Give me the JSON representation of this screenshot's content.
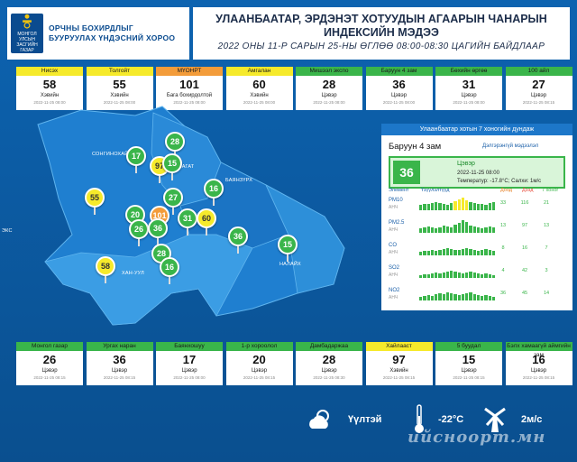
{
  "header": {
    "org_line1": "МОНГОЛ УЛСЫН",
    "org_line2": "ЗАСГИЙН ГАЗАР",
    "agency_line1": "ОРЧНЫ БОХИРДЛЫГ",
    "agency_line2": "БУУРУУЛАХ ҮНДЭСНИЙ ХОРОО",
    "title_line1": "УЛААНБААТАР, ЭРДЭНЭТ ХОТУУДЫН АГААРЫН ЧАНАРЫН",
    "title_line2": "ИНДЕКСИЙН МЭДЭЭ",
    "subtitle": "2022 ОНЫ 11-Р САРЫН 25-НЫ ӨГЛӨӨ 08:00-08:30 ЦАГИЙН БАЙДЛААР"
  },
  "top_cards": [
    {
      "name": "Нисэх",
      "value": "58",
      "level": "Хэвийн",
      "time": "2022-11-25 08:00",
      "color": "#f6ea2b"
    },
    {
      "name": "Толгойт",
      "value": "55",
      "level": "Хэвийн",
      "time": "2022-11-25 08:00",
      "color": "#f6ea2b"
    },
    {
      "name": "МҮОНРТ",
      "value": "101",
      "level": "Бага бохирдолтой",
      "time": "2022-11-25 08:00",
      "color": "#f39c3a"
    },
    {
      "name": "Амгалан",
      "value": "60",
      "level": "Хэвийн",
      "time": "2022-11-25 08:00",
      "color": "#f6ea2b"
    },
    {
      "name": "Мишээл экспо",
      "value": "28",
      "level": "Цэвэр",
      "time": "2022-11-25 08:00",
      "color": "#3ab54a"
    },
    {
      "name": "Баруун 4 зам",
      "value": "36",
      "level": "Цэвэр",
      "time": "2022-11-25 08:00",
      "color": "#3ab54a"
    },
    {
      "name": "Бөхийн өргөө",
      "value": "31",
      "level": "Цэвэр",
      "time": "2022-11-25 08:00",
      "color": "#3ab54a"
    },
    {
      "name": "100 айл",
      "value": "27",
      "level": "Цэвэр",
      "time": "2022-11-25 08:15",
      "color": "#3ab54a"
    }
  ],
  "bottom_cards": [
    {
      "name": "Монгол газар",
      "value": "26",
      "level": "Цэвэр",
      "time": "2022-11-25 08:15",
      "color": "#3ab54a"
    },
    {
      "name": "Ургах наран",
      "value": "36",
      "level": "Цэвэр",
      "time": "2022-11-25 08:15",
      "color": "#3ab54a"
    },
    {
      "name": "Баянхошуу",
      "value": "17",
      "level": "Цэвэр",
      "time": "2022-11-25 08:00",
      "color": "#3ab54a"
    },
    {
      "name": "1-р хороолол",
      "value": "20",
      "level": "Цэвэр",
      "time": "2022-11-25 08:15",
      "color": "#3ab54a"
    },
    {
      "name": "Дамбадаржаа",
      "value": "28",
      "level": "Цэвэр",
      "time": "2022-11-25 08:30",
      "color": "#3ab54a"
    },
    {
      "name": "Хайлааст",
      "value": "97",
      "level": "Хэвийн",
      "time": "2022-11-25 08:15",
      "color": "#f6ea2b"
    },
    {
      "name": "5 буудал",
      "value": "15",
      "level": "Цэвэр",
      "time": "2022-11-25 08:15",
      "color": "#3ab54a"
    },
    {
      "name": "Бэлх хамаагүй аймгийн зам",
      "value": "16",
      "level": "Цэвэр",
      "time": "2022-11-25 08:15",
      "color": "#3ab54a"
    }
  ],
  "map": {
    "districts": [
      "СОНГИНОХАЙРХАН",
      "БАЯНЗҮРХ",
      "НАЛАЙХ",
      "ХАН-УУЛ",
      "БАГАТ"
    ],
    "side_label": "ЭКС",
    "pins": [
      {
        "value": "28",
        "color": "#3ab54a"
      },
      {
        "value": "17",
        "color": "#3ab54a"
      },
      {
        "value": "97",
        "color": "#f6ea2b"
      },
      {
        "value": "15",
        "color": "#3ab54a"
      },
      {
        "value": "55",
        "color": "#f6ea2b"
      },
      {
        "value": "27",
        "color": "#3ab54a"
      },
      {
        "value": "16",
        "color": "#3ab54a"
      },
      {
        "value": "20",
        "color": "#3ab54a"
      },
      {
        "value": "101",
        "color": "#f39c3a"
      },
      {
        "value": "26",
        "color": "#3ab54a"
      },
      {
        "value": "36",
        "color": "#3ab54a"
      },
      {
        "value": "31",
        "color": "#3ab54a"
      },
      {
        "value": "60",
        "color": "#f6ea2b"
      },
      {
        "value": "36",
        "color": "#3ab54a"
      },
      {
        "value": "15",
        "color": "#3ab54a"
      },
      {
        "value": "28",
        "color": "#3ab54a"
      },
      {
        "value": "16",
        "color": "#3ab54a"
      },
      {
        "value": "58",
        "color": "#f6ea2b"
      }
    ]
  },
  "panel": {
    "title": "Улаанбаатар хотын 7 хоногийн дундаж",
    "station": "Баруун 4 зам",
    "link": "Дэлгэрэнгүй мэдээлэл",
    "aqi": "36",
    "aqi_level": "Цэвэр",
    "aqi_time": "2022-11-25 08:00",
    "aqi_weather": "Температур: -17.8°C; Салхи: 1м/с",
    "col_element": "Элемент",
    "col_chart": "Үзүүлэлтүүд",
    "col_min": "Доод",
    "col_max": "Дээд",
    "col_avg": "7 хоног",
    "pollutants": [
      {
        "name": "PM10",
        "sub": "АНЧ",
        "v1": "33",
        "v2": "116",
        "v3": "21"
      },
      {
        "name": "PM2.5",
        "sub": "АНЧ",
        "v1": "13",
        "v2": "97",
        "v3": "13"
      },
      {
        "name": "CO",
        "sub": "АНЧ",
        "v1": "8",
        "v2": "16",
        "v3": "7"
      },
      {
        "name": "SO2",
        "sub": "АНЧ",
        "v1": "4",
        "v2": "42",
        "v3": "3"
      },
      {
        "name": "NO2",
        "sub": "АНЧ",
        "v1": "36",
        "v2": "45",
        "v3": "14"
      }
    ]
  },
  "weather": {
    "condition": "Үүлтэй",
    "temperature": "-22°C",
    "wind": "2м/с",
    "watermark": "ийсноорт.мн"
  }
}
